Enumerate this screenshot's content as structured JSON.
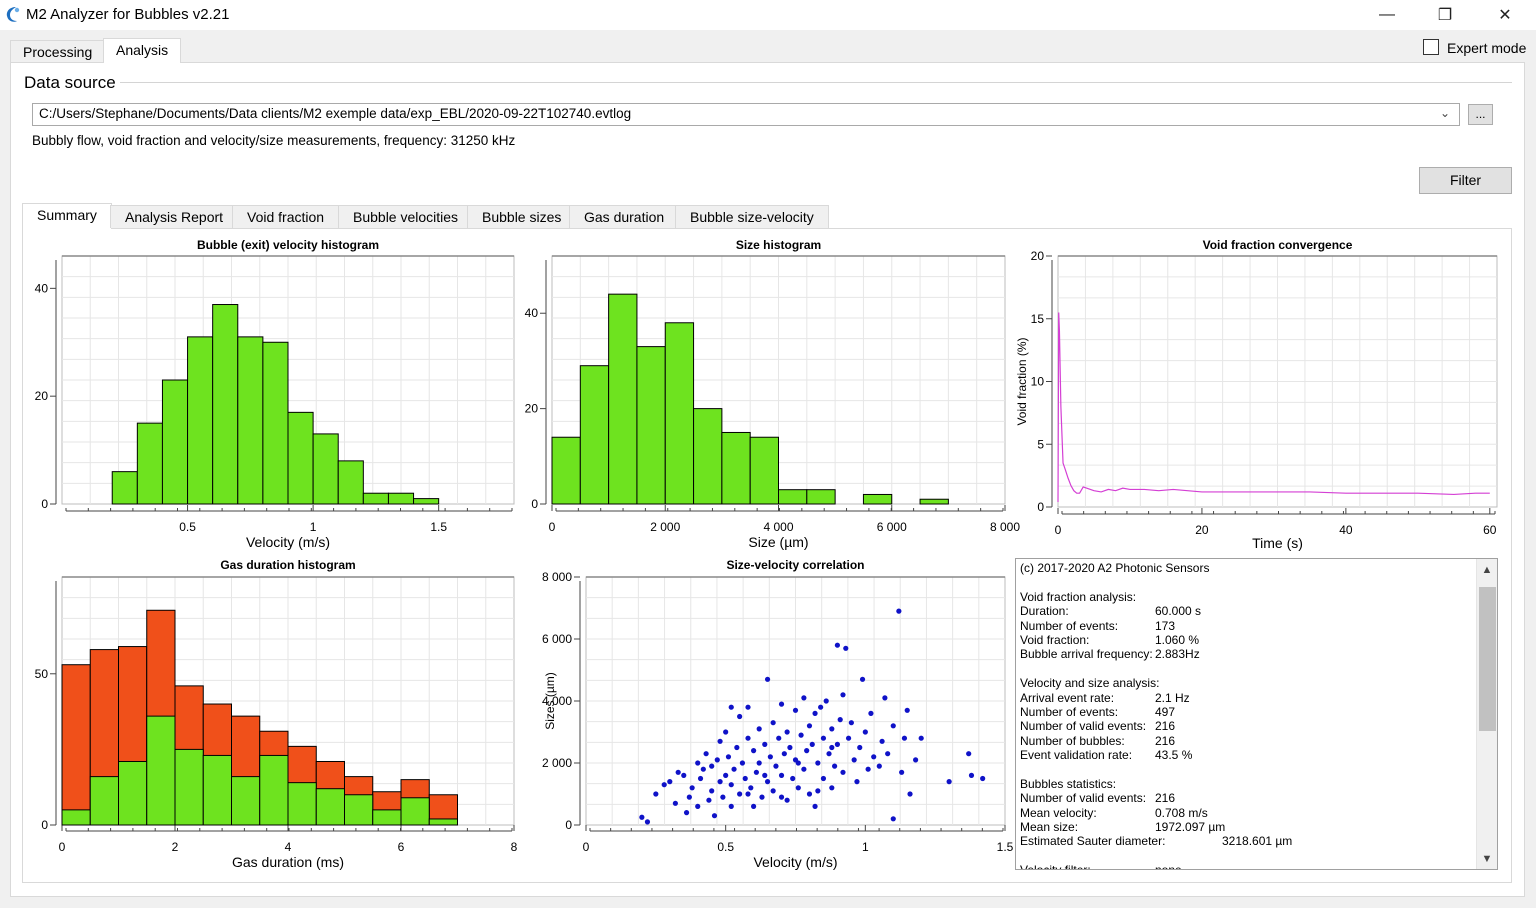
{
  "window": {
    "title": "M2 Analyzer for Bubbles v2.21",
    "minimize_glyph": "—",
    "restore_glyph": "❐",
    "close_glyph": "✕"
  },
  "top_tabs": [
    {
      "label": "Processing",
      "active": false
    },
    {
      "label": "Analysis",
      "active": true
    }
  ],
  "expert_mode": {
    "label": "Expert mode",
    "checked": false
  },
  "data_source": {
    "title": "Data source",
    "path": "C:/Users/Stephane/Documents/Data clients/M2 exemple data/exp_EBL/2020-09-22T102740.evtlog",
    "browse_label": "...",
    "description": "Bubbly flow, void fraction and velocity/size measurements, frequency: 31250 kHz"
  },
  "filter_button": "Filter",
  "sub_tabs": [
    {
      "label": "Summary",
      "active": true
    },
    {
      "label": "Analysis Report",
      "active": false
    },
    {
      "label": "Void fraction",
      "active": false
    },
    {
      "label": "Bubble velocities",
      "active": false
    },
    {
      "label": "Bubble sizes",
      "active": false
    },
    {
      "label": "Gas duration",
      "active": false
    },
    {
      "label": "Bubble size-velocity",
      "active": false
    }
  ],
  "colors": {
    "green": "#6ee31f",
    "orange": "#f0501a",
    "blue": "#0f12c8",
    "magenta": "#d43fd4",
    "grid": "#e6e6e6"
  },
  "chart_data": [
    {
      "id": "velocity",
      "type": "bar",
      "title": "Bubble (exit) velocity histogram",
      "xlabel": "Velocity (m/s)",
      "ylabel": "",
      "xlim": [
        0,
        1.8
      ],
      "ylim": [
        0,
        46
      ],
      "xticks": [
        {
          "v": 0.5,
          "label": "0.5"
        },
        {
          "v": 1,
          "label": "1"
        },
        {
          "v": 1.5,
          "label": "1.5"
        }
      ],
      "yticks": [
        {
          "v": 0,
          "label": "0"
        },
        {
          "v": 20,
          "label": "20"
        },
        {
          "v": 40,
          "label": "40"
        }
      ],
      "bin_width": 0.1,
      "bins": [
        0.2,
        0.3,
        0.4,
        0.5,
        0.6,
        0.7,
        0.8,
        0.9,
        1.0,
        1.1,
        1.2,
        1.3,
        1.4
      ],
      "values": [
        6,
        15,
        23,
        31,
        37,
        31,
        30,
        17,
        13,
        8,
        2,
        2,
        1
      ]
    },
    {
      "id": "size",
      "type": "bar",
      "title": "Size histogram",
      "xlabel": "Size (µm)",
      "ylabel": "",
      "xlim": [
        0,
        8000
      ],
      "ylim": [
        0,
        52
      ],
      "xticks": [
        {
          "v": 0,
          "label": "0"
        },
        {
          "v": 2000,
          "label": "2 000"
        },
        {
          "v": 4000,
          "label": "4 000"
        },
        {
          "v": 6000,
          "label": "6 000"
        },
        {
          "v": 8000,
          "label": "8 000"
        }
      ],
      "yticks": [
        {
          "v": 0,
          "label": "0"
        },
        {
          "v": 20,
          "label": "20"
        },
        {
          "v": 40,
          "label": "40"
        }
      ],
      "bin_width": 500,
      "bins": [
        0,
        500,
        1000,
        1500,
        2000,
        2500,
        3000,
        3500,
        4000,
        4500,
        5000,
        5500,
        6000,
        6500
      ],
      "values": [
        14,
        29,
        44,
        33,
        38,
        20,
        15,
        14,
        3,
        3,
        0,
        2,
        0,
        1
      ]
    },
    {
      "id": "void",
      "type": "line",
      "title": "Void fraction convergence",
      "xlabel": "Time (s)",
      "ylabel": "Void fraction (%)",
      "xlim": [
        0,
        61
      ],
      "ylim": [
        0,
        20
      ],
      "xticks": [
        {
          "v": 0,
          "label": "0"
        },
        {
          "v": 20,
          "label": "20"
        },
        {
          "v": 40,
          "label": "40"
        },
        {
          "v": 60,
          "label": "60"
        }
      ],
      "yticks": [
        {
          "v": 0,
          "label": "0"
        },
        {
          "v": 5,
          "label": "5"
        },
        {
          "v": 10,
          "label": "10"
        },
        {
          "v": 15,
          "label": "15"
        },
        {
          "v": 20,
          "label": "20"
        }
      ],
      "x": [
        0,
        0.1,
        0.2,
        0.4,
        0.7,
        1.0,
        1.4,
        1.8,
        2.2,
        2.6,
        3.0,
        3.5,
        4.0,
        5.0,
        6.0,
        7.0,
        8.0,
        9.0,
        10,
        12,
        14,
        16,
        18,
        20,
        25,
        30,
        35,
        40,
        45,
        50,
        55,
        58,
        60
      ],
      "y": [
        0.4,
        15.5,
        14,
        8,
        3.5,
        3.0,
        2.3,
        1.7,
        1.3,
        1.1,
        1.1,
        1.6,
        1.5,
        1.3,
        1.2,
        1.4,
        1.3,
        1.5,
        1.4,
        1.4,
        1.3,
        1.4,
        1.3,
        1.2,
        1.2,
        1.2,
        1.2,
        1.1,
        1.1,
        1.1,
        1.0,
        1.1,
        1.1
      ]
    },
    {
      "id": "gas",
      "type": "bar",
      "title": "Gas duration histogram",
      "xlabel": "Gas duration (ms)",
      "ylabel": "",
      "xlim": [
        0,
        8
      ],
      "ylim": [
        0,
        82
      ],
      "xticks": [
        {
          "v": 0,
          "label": "0"
        },
        {
          "v": 2,
          "label": "2"
        },
        {
          "v": 4,
          "label": "4"
        },
        {
          "v": 6,
          "label": "6"
        },
        {
          "v": 8,
          "label": "8"
        }
      ],
      "yticks": [
        {
          "v": 0,
          "label": "0"
        },
        {
          "v": 50,
          "label": "50"
        }
      ],
      "bin_width": 0.5,
      "bins": [
        0,
        0.5,
        1.0,
        1.5,
        2.0,
        2.5,
        3.0,
        3.5,
        4.0,
        4.5,
        5.0,
        5.5,
        6.0,
        6.5
      ],
      "series": [
        {
          "values": [
            53,
            58,
            59,
            71,
            46,
            40,
            36,
            31,
            26,
            21,
            16,
            11,
            15,
            10
          ],
          "color": "orange"
        },
        {
          "values": [
            5,
            16,
            21,
            36,
            25,
            23,
            16,
            23,
            14,
            12,
            10,
            5,
            9,
            2
          ],
          "color": "green"
        }
      ]
    },
    {
      "id": "scatter",
      "type": "scatter",
      "title": "Size-velocity correlation",
      "xlabel": "Velocity (m/s)",
      "ylabel": "Sizes (µm)",
      "xlim": [
        0,
        1.5
      ],
      "ylim": [
        0,
        8000
      ],
      "xticks": [
        {
          "v": 0,
          "label": "0"
        },
        {
          "v": 0.5,
          "label": "0.5"
        },
        {
          "v": 1,
          "label": "1"
        },
        {
          "v": 1.5,
          "label": "1.5"
        }
      ],
      "yticks": [
        {
          "v": 0,
          "label": "0"
        },
        {
          "v": 2000,
          "label": "2 000"
        },
        {
          "v": 4000,
          "label": "4 000"
        },
        {
          "v": 6000,
          "label": "6 000"
        },
        {
          "v": 8000,
          "label": "8 000"
        }
      ],
      "points": [
        [
          0.2,
          250
        ],
        [
          0.22,
          100
        ],
        [
          0.25,
          1000
        ],
        [
          0.28,
          1300
        ],
        [
          0.3,
          1400
        ],
        [
          0.32,
          700
        ],
        [
          0.33,
          1700
        ],
        [
          0.35,
          1600
        ],
        [
          0.36,
          400
        ],
        [
          0.37,
          900
        ],
        [
          0.38,
          1200
        ],
        [
          0.4,
          2000
        ],
        [
          0.4,
          600
        ],
        [
          0.41,
          1500
        ],
        [
          0.42,
          1800
        ],
        [
          0.43,
          2300
        ],
        [
          0.44,
          800
        ],
        [
          0.45,
          1100
        ],
        [
          0.45,
          1900
        ],
        [
          0.46,
          300
        ],
        [
          0.47,
          2100
        ],
        [
          0.48,
          1400
        ],
        [
          0.48,
          2700
        ],
        [
          0.49,
          900
        ],
        [
          0.5,
          1600
        ],
        [
          0.5,
          3000
        ],
        [
          0.51,
          2200
        ],
        [
          0.52,
          1300
        ],
        [
          0.52,
          600
        ],
        [
          0.53,
          1800
        ],
        [
          0.54,
          2500
        ],
        [
          0.55,
          1000
        ],
        [
          0.55,
          3500
        ],
        [
          0.56,
          2000
        ],
        [
          0.57,
          1500
        ],
        [
          0.58,
          3800
        ],
        [
          0.58,
          2800
        ],
        [
          0.59,
          1200
        ],
        [
          0.6,
          2400
        ],
        [
          0.6,
          600
        ],
        [
          0.61,
          1700
        ],
        [
          0.62,
          3100
        ],
        [
          0.62,
          2000
        ],
        [
          0.63,
          900
        ],
        [
          0.64,
          2600
        ],
        [
          0.65,
          4700
        ],
        [
          0.65,
          1400
        ],
        [
          0.66,
          2200
        ],
        [
          0.67,
          3300
        ],
        [
          0.67,
          1100
        ],
        [
          0.68,
          1900
        ],
        [
          0.69,
          2800
        ],
        [
          0.7,
          3900
        ],
        [
          0.7,
          1600
        ],
        [
          0.71,
          2300
        ],
        [
          0.72,
          800
        ],
        [
          0.72,
          3000
        ],
        [
          0.73,
          2500
        ],
        [
          0.74,
          1500
        ],
        [
          0.75,
          3700
        ],
        [
          0.75,
          2100
        ],
        [
          0.76,
          1200
        ],
        [
          0.77,
          2900
        ],
        [
          0.78,
          4100
        ],
        [
          0.78,
          1800
        ],
        [
          0.79,
          2400
        ],
        [
          0.8,
          3200
        ],
        [
          0.8,
          1000
        ],
        [
          0.81,
          2600
        ],
        [
          0.82,
          3600
        ],
        [
          0.82,
          600
        ],
        [
          0.83,
          2000
        ],
        [
          0.84,
          3800
        ],
        [
          0.85,
          1500
        ],
        [
          0.85,
          2800
        ],
        [
          0.86,
          4000
        ],
        [
          0.87,
          2300
        ],
        [
          0.88,
          3100
        ],
        [
          0.88,
          1200
        ],
        [
          0.89,
          1900
        ],
        [
          0.9,
          5800
        ],
        [
          0.9,
          2600
        ],
        [
          0.91,
          3400
        ],
        [
          0.92,
          4200
        ],
        [
          0.92,
          1700
        ],
        [
          0.93,
          5700
        ],
        [
          0.94,
          2800
        ],
        [
          0.95,
          3300
        ],
        [
          0.96,
          2100
        ],
        [
          0.97,
          1400
        ],
        [
          0.98,
          2500
        ],
        [
          0.99,
          4700
        ],
        [
          1.0,
          3000
        ],
        [
          1.01,
          1800
        ],
        [
          1.02,
          3600
        ],
        [
          1.03,
          2200
        ],
        [
          1.05,
          1900
        ],
        [
          1.06,
          2700
        ],
        [
          1.07,
          4100
        ],
        [
          1.08,
          2300
        ],
        [
          1.1,
          3200
        ],
        [
          1.12,
          6900
        ],
        [
          1.13,
          1700
        ],
        [
          1.14,
          2800
        ],
        [
          1.15,
          3700
        ],
        [
          1.16,
          1000
        ],
        [
          1.18,
          2100
        ],
        [
          1.2,
          2800
        ],
        [
          1.3,
          1400
        ],
        [
          1.37,
          2300
        ],
        [
          1.38,
          1600
        ],
        [
          1.42,
          1500
        ],
        [
          0.52,
          3800
        ],
        [
          0.58,
          1000
        ],
        [
          0.64,
          1600
        ],
        [
          0.7,
          900
        ],
        [
          0.76,
          2000
        ],
        [
          0.83,
          1100
        ],
        [
          0.88,
          2500
        ],
        [
          1.1,
          200
        ]
      ]
    }
  ],
  "report": {
    "lines": [
      {
        "k": "(c) 2017-2020 A2 Photonic Sensors",
        "v": ""
      },
      {
        "k": "",
        "v": ""
      },
      {
        "k": "Void fraction analysis:",
        "v": ""
      },
      {
        "k": "Duration:",
        "v": "60.000 s"
      },
      {
        "k": "Number of events:",
        "v": "173"
      },
      {
        "k": "Void fraction:",
        "v": "1.060 %"
      },
      {
        "k": "Bubble arrival frequency:",
        "v": "2.883Hz"
      },
      {
        "k": "",
        "v": ""
      },
      {
        "k": "Velocity and size analysis:",
        "v": ""
      },
      {
        "k": "Arrival event rate:",
        "v": "2.1 Hz"
      },
      {
        "k": "Number of events:",
        "v": "497"
      },
      {
        "k": "Number of valid events:",
        "v": "216"
      },
      {
        "k": "Number of bubbles:",
        "v": "216"
      },
      {
        "k": "Event validation rate:",
        "v": "43.5 %"
      },
      {
        "k": "",
        "v": ""
      },
      {
        "k": "Bubbles statistics:",
        "v": ""
      },
      {
        "k": "Number of valid events:",
        "v": "216"
      },
      {
        "k": "Mean velocity:",
        "v": "0.708 m/s"
      },
      {
        "k": "Mean size:",
        "v": "1972.097 µm"
      },
      {
        "k": "Estimated Sauter diameter:",
        "v": "3218.601 µm",
        "wide": true
      },
      {
        "k": "",
        "v": ""
      },
      {
        "k": "Velocity filter:",
        "v": "none"
      }
    ],
    "scroll_up": "▲",
    "scroll_down": "▼"
  }
}
